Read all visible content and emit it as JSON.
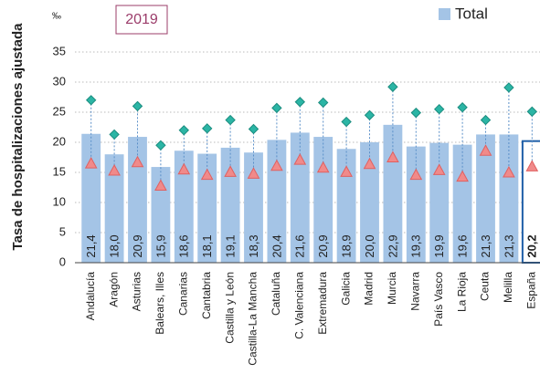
{
  "chart_data": {
    "type": "bar",
    "title": "2019",
    "unit": "‰",
    "y_label": "Tasa de hospitalizaciones ajustada",
    "categories": [
      "Andalucía",
      "Aragón",
      "Asturias",
      "Balears, Illes",
      "Canarias",
      "Cantabria",
      "Castilla y León",
      "Castilla-La Mancha",
      "Cataluña",
      "C. Valenciana",
      "Extremadura",
      "Galicia",
      "Madrid",
      "Murcia",
      "Navarra",
      "País Vasco",
      "La Rioja",
      "Ceuta",
      "Melilla",
      "España"
    ],
    "series": [
      {
        "name": "Total",
        "color": "#a4c4e6",
        "marker": "bar",
        "values": [
          21.4,
          18.0,
          20.9,
          15.9,
          18.6,
          18.1,
          19.1,
          18.3,
          20.4,
          21.6,
          20.9,
          18.9,
          20.0,
          22.9,
          19.3,
          19.9,
          19.6,
          21.3,
          21.3,
          20.2
        ],
        "value_labels": [
          "21,4",
          "18,0",
          "20,9",
          "15,9",
          "18,6",
          "18,1",
          "19,1",
          "18,3",
          "20,4",
          "21,6",
          "20,9",
          "18,9",
          "20,0",
          "22,9",
          "19,3",
          "19,9",
          "19,6",
          "21,3",
          "21,3",
          "20,2"
        ]
      },
      {
        "color": "#2bb5a5",
        "marker": "diamond",
        "values": [
          27.0,
          21.3,
          26.0,
          19.5,
          22.0,
          22.3,
          23.7,
          22.2,
          25.7,
          26.7,
          26.6,
          23.4,
          24.5,
          29.2,
          24.9,
          25.5,
          25.8,
          23.7,
          29.1,
          25.1
        ]
      },
      {
        "color": "#f08a8a",
        "marker": "triangle",
        "values": [
          16.5,
          15.3,
          16.7,
          12.8,
          15.5,
          14.6,
          15.1,
          14.8,
          16.1,
          17.1,
          15.8,
          15.1,
          16.4,
          17.5,
          14.6,
          15.4,
          14.3,
          18.6,
          15.0,
          16.0
        ]
      }
    ],
    "highlight_index": 19,
    "ylim": [
      0,
      35
    ],
    "yticks": [
      0,
      5,
      10,
      15,
      20,
      25,
      30,
      35
    ],
    "grid": true,
    "legend": "top-right"
  }
}
